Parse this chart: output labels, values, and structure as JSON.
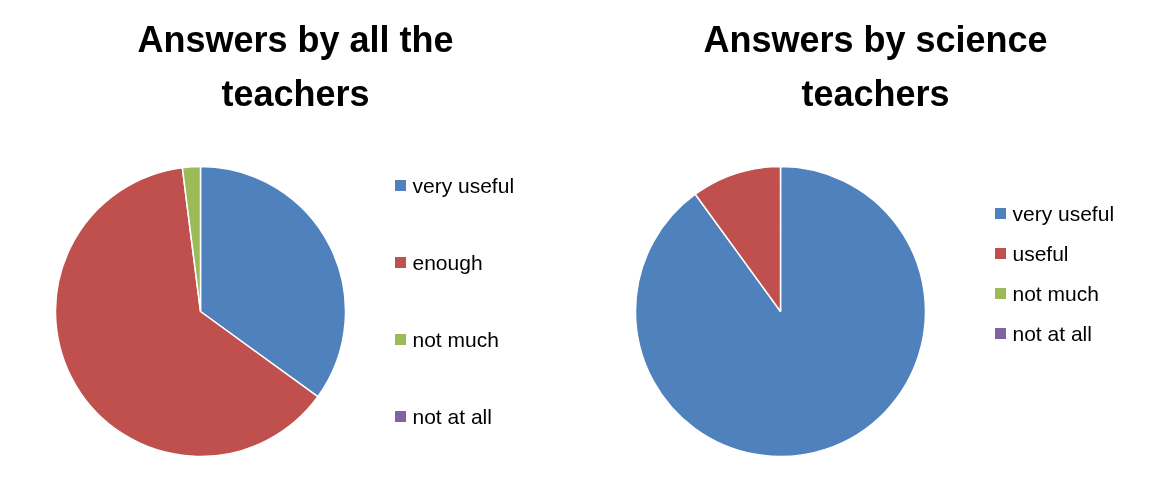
{
  "chart_data": [
    {
      "type": "pie",
      "title": "Answers by all the teachers",
      "categories": [
        "very useful",
        "enough",
        "not much",
        "not at all"
      ],
      "values": [
        35,
        63,
        2,
        0
      ],
      "colors": [
        "#4f81bd",
        "#c0504d",
        "#9bbb59",
        "#8064a2"
      ],
      "legend": "right"
    },
    {
      "type": "pie",
      "title": "Answers by science teachers",
      "categories": [
        "very useful",
        "useful",
        "not much",
        "not at all"
      ],
      "values": [
        90,
        10,
        0,
        0
      ],
      "colors": [
        "#4f81bd",
        "#c0504d",
        "#9bbb59",
        "#8064a2"
      ],
      "legend": "right"
    }
  ]
}
